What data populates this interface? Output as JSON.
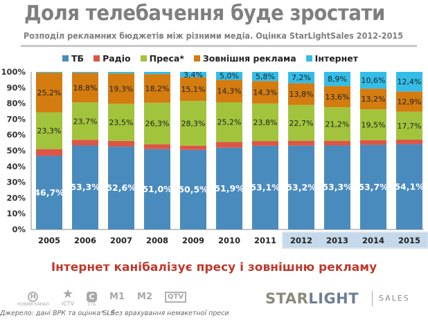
{
  "header": {
    "title": "Доля телебачення буде зростати",
    "subtitle": "Розподіл рекламних бюджетів між різними медіа. Оцінка StarLightSales 2012-2015"
  },
  "legend": [
    {
      "label": "ТБ",
      "color": "#4a8bbe"
    },
    {
      "label": "Радіо",
      "color": "#dd5645"
    },
    {
      "label": "Преса*",
      "color": "#a2c43c"
    },
    {
      "label": "Зовнішня реклама",
      "color": "#d47c10"
    },
    {
      "label": "Інтернет",
      "color": "#33bde8"
    }
  ],
  "chart_data": {
    "type": "bar",
    "stacked": true,
    "title": "Доля телебачення буде зростати",
    "subtitle": "Розподіл рекламних бюджетів між різними медіа. Оцінка StarLightSales 2012-2015",
    "xlabel": "",
    "ylabel": "",
    "ylim": [
      0,
      100
    ],
    "yticks": [
      "0%",
      "10%",
      "20%",
      "30%",
      "40%",
      "50%",
      "60%",
      "70%",
      "80%",
      "90%",
      "100%"
    ],
    "categories": [
      "2005",
      "2006",
      "2007",
      "2008",
      "2009",
      "2010",
      "2011",
      "2012",
      "2013",
      "2014",
      "2015"
    ],
    "forecast_categories": [
      "2012",
      "2013",
      "2014",
      "2015"
    ],
    "legend_position": "top",
    "grid": false,
    "series": [
      {
        "name": "ТБ",
        "color": "#4a8bbe",
        "values": [
          46.7,
          53.3,
          52.6,
          51.0,
          50.5,
          51.9,
          53.1,
          53.2,
          53.3,
          53.7,
          54.1
        ],
        "labels": [
          "46,7%",
          "53,3%",
          "52,6%",
          "51,0%",
          "50,5%",
          "51,9%",
          "53,1%",
          "53,2%",
          "53,3%",
          "53,7%",
          "54,1%"
        ]
      },
      {
        "name": "Радіо",
        "color": "#dd5645",
        "values": [
          4.3,
          3.6,
          3.6,
          3.1,
          2.7,
          3.6,
          3.0,
          3.1,
          3.0,
          3.0,
          2.9
        ],
        "labels": [
          "",
          "",
          "",
          "",
          "",
          "",
          "",
          "",
          "",
          "",
          ""
        ]
      },
      {
        "name": "Преса*",
        "color": "#a2c43c",
        "values": [
          23.3,
          23.7,
          23.5,
          26.3,
          28.3,
          25.2,
          23.8,
          22.7,
          21.2,
          19.5,
          17.7
        ],
        "labels": [
          "23,3%",
          "23,7%",
          "23,5%",
          "26,3%",
          "28,3%",
          "25,2%",
          "23,8%",
          "22,7%",
          "21,2%",
          "19,5%",
          "17,7%"
        ]
      },
      {
        "name": "Зовнішня реклама",
        "color": "#d47c10",
        "values": [
          25.2,
          18.8,
          19.3,
          18.2,
          15.1,
          14.3,
          14.3,
          13.8,
          13.6,
          13.2,
          12.9
        ],
        "labels": [
          "25,2%",
          "18,8%",
          "19,3%",
          "18,2%",
          "15,1%",
          "14,3%",
          "14,3%",
          "13,8%",
          "13,6%",
          "13,2%",
          "12,9%"
        ]
      },
      {
        "name": "Інтернет",
        "color": "#33bde8",
        "values": [
          0.5,
          0.6,
          1.0,
          1.4,
          3.4,
          5.0,
          5.8,
          7.2,
          8.9,
          10.6,
          12.4
        ],
        "labels": [
          "",
          "",
          "",
          "",
          "3,4%",
          "5,0%",
          "5,8%",
          "7,2%",
          "8,9%",
          "10,6%",
          "12,4%"
        ]
      }
    ]
  },
  "conclusion": "Інтернет канібалізує пресу і зовнішню рекламу",
  "logos": {
    "novyi_kanal": {
      "glyph": "H",
      "caption": "НОВИЙ КАНАЛ"
    },
    "ictv": {
      "glyph": "★",
      "caption": "ICTV"
    },
    "stb": {
      "glyph": "C",
      "caption": "СТБ"
    },
    "m1": {
      "glyph": "M1"
    },
    "m2": {
      "glyph": "M2"
    },
    "qtv": {
      "glyph": "QTV"
    }
  },
  "footer": {
    "source": "Джерело: дані ВРК та оцінка SLS",
    "footnote": "* - без врахування немакетної преси",
    "brand_star": "STAR",
    "brand_light": "LIGHT",
    "brand_sales": "SALES"
  }
}
